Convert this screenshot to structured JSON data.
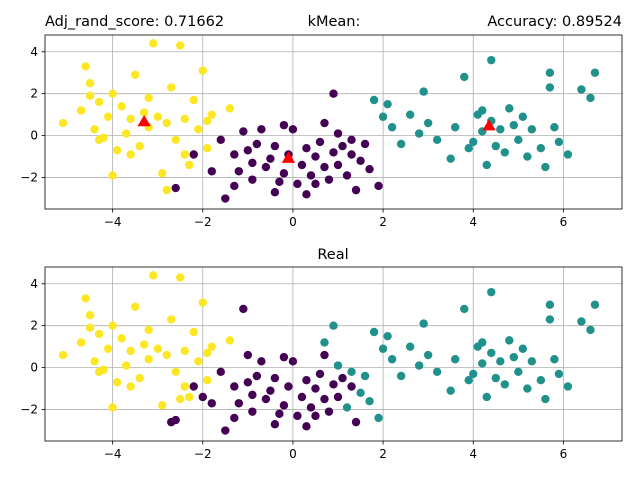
{
  "colors": {
    "cluster_a": "#440154",
    "cluster_b": "#21918c",
    "cluster_c": "#fde725",
    "centroid": "#ff0000",
    "grid": "#b0b0b0"
  },
  "chart_data": [
    {
      "type": "scatter",
      "title_left": "Adj_rand_score: 0.71662",
      "title_center": "kMean:",
      "title_right": "Accuracy: 0.89524",
      "xlim": [
        -5.5,
        7.3
      ],
      "ylim": [
        -3.5,
        4.8
      ],
      "xticks": [
        -4,
        -2,
        0,
        2,
        4,
        6
      ],
      "yticks": [
        -2,
        0,
        2,
        4
      ],
      "grid": true,
      "series": [
        {
          "color": "#440154",
          "points": [
            [
              -1.8,
              -1.7
            ],
            [
              -1.5,
              -3.0
            ],
            [
              -1.3,
              -0.9
            ],
            [
              -1.2,
              -1.7
            ],
            [
              -1.1,
              0.2
            ],
            [
              -1.0,
              -0.7
            ],
            [
              -0.9,
              -1.3
            ],
            [
              -0.8,
              -0.4
            ],
            [
              -0.7,
              0.3
            ],
            [
              -0.6,
              -1.5
            ],
            [
              -0.5,
              -1.1
            ],
            [
              -0.4,
              -0.5
            ],
            [
              -0.3,
              -2.2
            ],
            [
              -0.2,
              -1.8
            ],
            [
              -0.1,
              -0.9
            ],
            [
              0.0,
              0.3
            ],
            [
              0.1,
              -2.3
            ],
            [
              0.2,
              -1.4
            ],
            [
              0.3,
              -0.6
            ],
            [
              0.4,
              -1.9
            ],
            [
              0.5,
              -1.0
            ],
            [
              0.6,
              -0.3
            ],
            [
              0.7,
              -1.5
            ],
            [
              0.8,
              -2.1
            ],
            [
              0.9,
              -0.8
            ],
            [
              1.0,
              -1.4
            ],
            [
              1.1,
              -0.5
            ],
            [
              1.2,
              -1.9
            ],
            [
              1.3,
              -0.9
            ],
            [
              1.4,
              -2.6
            ],
            [
              1.5,
              -1.2
            ],
            [
              1.6,
              -0.4
            ],
            [
              1.7,
              -1.6
            ],
            [
              -1.6,
              -0.2
            ],
            [
              -0.9,
              -2.1
            ],
            [
              0.3,
              -2.8
            ],
            [
              0.7,
              0.6
            ],
            [
              1.0,
              0.1
            ],
            [
              -0.2,
              0.5
            ],
            [
              0.5,
              -2.3
            ],
            [
              1.9,
              -2.4
            ],
            [
              -1.3,
              -2.4
            ],
            [
              -2.2,
              -0.9
            ],
            [
              -2.6,
              -2.5
            ],
            [
              0.9,
              2.0
            ],
            [
              -0.4,
              -2.7
            ],
            [
              1.3,
              -0.2
            ]
          ]
        },
        {
          "color": "#21918c",
          "points": [
            [
              1.8,
              1.7
            ],
            [
              2.0,
              0.9
            ],
            [
              2.2,
              0.4
            ],
            [
              2.4,
              -0.4
            ],
            [
              2.6,
              1.0
            ],
            [
              2.8,
              0.1
            ],
            [
              3.0,
              0.6
            ],
            [
              3.2,
              -0.2
            ],
            [
              3.5,
              -1.1
            ],
            [
              3.6,
              0.4
            ],
            [
              3.8,
              2.8
            ],
            [
              4.0,
              -0.3
            ],
            [
              4.1,
              1.0
            ],
            [
              4.2,
              0.2
            ],
            [
              4.3,
              -1.4
            ],
            [
              4.4,
              0.7
            ],
            [
              4.5,
              -0.5
            ],
            [
              4.6,
              0.3
            ],
            [
              4.7,
              -0.8
            ],
            [
              4.8,
              1.3
            ],
            [
              4.9,
              0.5
            ],
            [
              5.0,
              -0.2
            ],
            [
              5.1,
              0.9
            ],
            [
              5.2,
              -1.0
            ],
            [
              5.3,
              0.3
            ],
            [
              5.5,
              -0.6
            ],
            [
              5.7,
              2.3
            ],
            [
              5.8,
              0.4
            ],
            [
              5.9,
              -0.3
            ],
            [
              6.1,
              -0.9
            ],
            [
              6.4,
              2.2
            ],
            [
              6.6,
              1.8
            ],
            [
              6.7,
              3.0
            ],
            [
              4.4,
              3.6
            ],
            [
              2.9,
              2.1
            ],
            [
              5.7,
              3.0
            ],
            [
              5.6,
              -1.5
            ],
            [
              3.9,
              -0.6
            ],
            [
              4.2,
              1.2
            ],
            [
              2.1,
              1.5
            ]
          ]
        },
        {
          "color": "#fde725",
          "points": [
            [
              -5.1,
              0.6
            ],
            [
              -4.7,
              1.2
            ],
            [
              -4.6,
              3.3
            ],
            [
              -4.5,
              2.5
            ],
            [
              -4.4,
              0.3
            ],
            [
              -4.3,
              1.6
            ],
            [
              -4.2,
              -0.1
            ],
            [
              -4.1,
              0.9
            ],
            [
              -4.0,
              2.0
            ],
            [
              -3.9,
              -0.7
            ],
            [
              -3.8,
              1.4
            ],
            [
              -3.7,
              0.1
            ],
            [
              -3.6,
              0.8
            ],
            [
              -3.5,
              2.9
            ],
            [
              -3.4,
              -0.5
            ],
            [
              -3.3,
              1.1
            ],
            [
              -3.2,
              0.4
            ],
            [
              -3.1,
              4.4
            ],
            [
              -3.0,
              0.9
            ],
            [
              -2.9,
              -1.8
            ],
            [
              -2.8,
              0.6
            ],
            [
              -2.7,
              2.3
            ],
            [
              -2.6,
              -0.2
            ],
            [
              -2.5,
              4.3
            ],
            [
              -2.4,
              0.8
            ],
            [
              -2.3,
              -1.4
            ],
            [
              -2.2,
              1.7
            ],
            [
              -2.1,
              0.3
            ],
            [
              -2.0,
              3.1
            ],
            [
              -1.9,
              -0.6
            ],
            [
              -1.8,
              1.0
            ],
            [
              -1.4,
              1.3
            ],
            [
              -4.5,
              1.9
            ],
            [
              -4.0,
              -1.9
            ],
            [
              -3.6,
              -0.9
            ],
            [
              -2.8,
              -2.6
            ],
            [
              -2.4,
              -0.9
            ],
            [
              -1.9,
              0.7
            ],
            [
              -3.2,
              1.8
            ],
            [
              -4.3,
              -0.2
            ]
          ]
        },
        {
          "color": "#ff0000",
          "marker": "triangle",
          "points": [
            [
              -3.3,
              0.65
            ],
            [
              -0.1,
              -1.1
            ],
            [
              4.35,
              0.45
            ]
          ]
        }
      ]
    },
    {
      "type": "scatter",
      "title_center": "Real",
      "xlim": [
        -5.5,
        7.3
      ],
      "ylim": [
        -3.5,
        4.8
      ],
      "xticks": [
        -4,
        -2,
        0,
        2,
        4,
        6
      ],
      "yticks": [
        -2,
        0,
        2,
        4
      ],
      "grid": true,
      "series": [
        {
          "color": "#440154",
          "points": [
            [
              -1.8,
              -1.7
            ],
            [
              -1.5,
              -3.0
            ],
            [
              -1.3,
              -0.9
            ],
            [
              -1.2,
              -1.7
            ],
            [
              -1.1,
              2.8
            ],
            [
              -1.0,
              -0.7
            ],
            [
              -0.9,
              -1.3
            ],
            [
              -0.8,
              -0.4
            ],
            [
              -0.7,
              0.3
            ],
            [
              -0.6,
              -1.5
            ],
            [
              -0.5,
              -1.1
            ],
            [
              -0.4,
              -0.5
            ],
            [
              -0.3,
              -2.2
            ],
            [
              -0.2,
              -1.8
            ],
            [
              -0.1,
              -0.9
            ],
            [
              0.0,
              0.3
            ],
            [
              0.1,
              -2.3
            ],
            [
              0.2,
              -1.4
            ],
            [
              0.3,
              -0.6
            ],
            [
              0.4,
              -1.9
            ],
            [
              0.5,
              -1.0
            ],
            [
              0.6,
              -0.3
            ],
            [
              0.7,
              -1.5
            ],
            [
              0.8,
              -2.1
            ],
            [
              0.9,
              -0.8
            ],
            [
              1.0,
              -1.4
            ],
            [
              1.1,
              -0.5
            ],
            [
              1.3,
              -0.9
            ],
            [
              1.4,
              -2.6
            ],
            [
              -1.6,
              -0.2
            ],
            [
              -0.9,
              -2.1
            ],
            [
              0.3,
              -2.8
            ],
            [
              0.7,
              0.6
            ],
            [
              -0.2,
              0.5
            ],
            [
              0.5,
              -2.3
            ],
            [
              -1.3,
              -2.4
            ],
            [
              -2.2,
              -0.9
            ],
            [
              -2.6,
              -2.5
            ],
            [
              -0.4,
              -2.7
            ],
            [
              -2.7,
              -2.6
            ],
            [
              -2.0,
              -1.4
            ],
            [
              -1.0,
              0.6
            ]
          ]
        },
        {
          "color": "#21918c",
          "points": [
            [
              1.8,
              1.7
            ],
            [
              2.0,
              0.9
            ],
            [
              2.2,
              0.4
            ],
            [
              2.4,
              -0.4
            ],
            [
              2.6,
              1.0
            ],
            [
              2.8,
              0.1
            ],
            [
              3.0,
              0.6
            ],
            [
              3.2,
              -0.2
            ],
            [
              3.5,
              -1.1
            ],
            [
              3.6,
              0.4
            ],
            [
              3.8,
              2.8
            ],
            [
              4.0,
              -0.3
            ],
            [
              4.1,
              1.0
            ],
            [
              4.2,
              0.2
            ],
            [
              4.3,
              -1.4
            ],
            [
              4.4,
              0.7
            ],
            [
              4.5,
              -0.5
            ],
            [
              4.6,
              0.3
            ],
            [
              4.7,
              -0.8
            ],
            [
              4.8,
              1.3
            ],
            [
              4.9,
              0.5
            ],
            [
              5.0,
              -0.2
            ],
            [
              5.1,
              0.9
            ],
            [
              5.2,
              -1.0
            ],
            [
              5.3,
              0.3
            ],
            [
              5.5,
              -0.6
            ],
            [
              5.7,
              2.3
            ],
            [
              5.8,
              0.4
            ],
            [
              5.9,
              -0.3
            ],
            [
              6.1,
              -0.9
            ],
            [
              6.4,
              2.2
            ],
            [
              6.6,
              1.8
            ],
            [
              6.7,
              3.0
            ],
            [
              4.4,
              3.6
            ],
            [
              2.9,
              2.1
            ],
            [
              5.7,
              3.0
            ],
            [
              5.6,
              -1.5
            ],
            [
              3.9,
              -0.6
            ],
            [
              4.2,
              1.2
            ],
            [
              2.1,
              1.5
            ],
            [
              1.2,
              -1.9
            ],
            [
              1.5,
              -1.2
            ],
            [
              1.7,
              -1.6
            ],
            [
              1.6,
              -0.4
            ],
            [
              0.7,
              1.2
            ],
            [
              1.9,
              -2.4
            ],
            [
              0.9,
              2.0
            ],
            [
              1.0,
              0.1
            ],
            [
              1.3,
              -0.2
            ]
          ]
        },
        {
          "color": "#fde725",
          "points": [
            [
              -5.1,
              0.6
            ],
            [
              -4.7,
              1.2
            ],
            [
              -4.6,
              3.3
            ],
            [
              -4.5,
              2.5
            ],
            [
              -4.4,
              0.3
            ],
            [
              -4.3,
              1.6
            ],
            [
              -4.2,
              -0.1
            ],
            [
              -4.1,
              0.9
            ],
            [
              -4.0,
              2.0
            ],
            [
              -3.9,
              -0.7
            ],
            [
              -3.8,
              1.4
            ],
            [
              -3.7,
              0.1
            ],
            [
              -3.6,
              0.8
            ],
            [
              -3.5,
              2.9
            ],
            [
              -3.4,
              -0.5
            ],
            [
              -3.3,
              1.1
            ],
            [
              -3.2,
              0.4
            ],
            [
              -3.1,
              4.4
            ],
            [
              -3.0,
              0.9
            ],
            [
              -2.9,
              -1.8
            ],
            [
              -2.8,
              0.6
            ],
            [
              -2.7,
              2.3
            ],
            [
              -2.6,
              -0.2
            ],
            [
              -2.5,
              4.3
            ],
            [
              -2.4,
              0.8
            ],
            [
              -2.3,
              -1.4
            ],
            [
              -2.2,
              1.7
            ],
            [
              -2.1,
              0.3
            ],
            [
              -2.0,
              3.1
            ],
            [
              -1.9,
              -0.6
            ],
            [
              -1.8,
              1.0
            ],
            [
              -1.4,
              1.3
            ],
            [
              -4.5,
              1.9
            ],
            [
              -4.0,
              -1.9
            ],
            [
              -3.6,
              -0.9
            ],
            [
              -2.4,
              -0.9
            ],
            [
              -1.9,
              0.7
            ],
            [
              -3.2,
              1.8
            ],
            [
              -4.3,
              -0.2
            ],
            [
              -2.5,
              -1.5
            ]
          ]
        }
      ]
    }
  ]
}
